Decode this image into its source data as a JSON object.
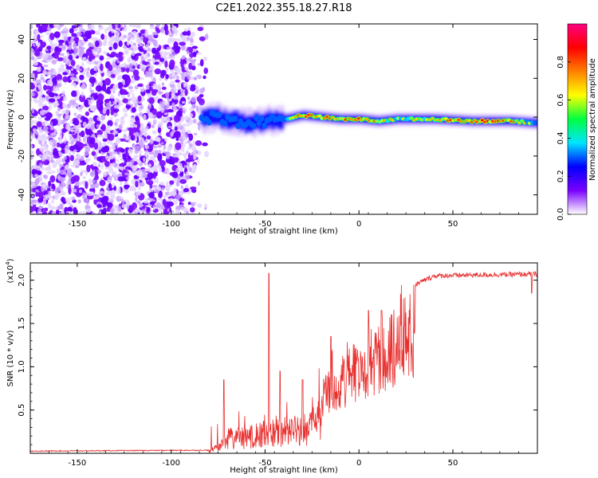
{
  "title": "C2E1.2022.355.18.27.R18",
  "chart_data": [
    {
      "type": "heatmap",
      "xlabel": "Height of straight line (km)",
      "ylabel": "Frequency (Hz)",
      "xlim": [
        -175,
        95
      ],
      "ylim": [
        -50,
        48
      ],
      "xticks": [
        "-150",
        "-100",
        "-50",
        "0",
        "50"
      ],
      "xtick_values": [
        -150,
        -100,
        -50,
        0,
        50
      ],
      "yticks": [
        "40",
        "20",
        "0",
        "-20",
        "-40"
      ],
      "ytick_values": [
        40,
        20,
        0,
        -20,
        -40
      ],
      "colorbar": {
        "label": "Normalized spectral amplitude",
        "range": [
          0,
          1
        ],
        "ticks": [
          "0.0",
          "0.2",
          "0.4",
          "0.6",
          "0.8"
        ],
        "tick_values": [
          0.0,
          0.2,
          0.4,
          0.6,
          0.8
        ],
        "colors": [
          "#ffffff",
          "#7a00ff",
          "#0000ff",
          "#00e5ff",
          "#00ff40",
          "#ffff00",
          "#ff8000",
          "#ff0000",
          "#ff0080"
        ]
      },
      "noise_region_end_km": -87,
      "signal_track": [
        {
          "x": -84,
          "y": -1,
          "amp": 0.35
        },
        {
          "x": -78,
          "y": 0,
          "amp": 0.3
        },
        {
          "x": -70,
          "y": -1,
          "amp": 0.35
        },
        {
          "x": -60,
          "y": -3,
          "amp": 0.3
        },
        {
          "x": -50,
          "y": -2,
          "amp": 0.35
        },
        {
          "x": -40,
          "y": -1,
          "amp": 0.4
        },
        {
          "x": -30,
          "y": 1,
          "amp": 0.8
        },
        {
          "x": -20,
          "y": 0,
          "amp": 0.8
        },
        {
          "x": -10,
          "y": -1,
          "amp": 0.75
        },
        {
          "x": 0,
          "y": -1,
          "amp": 0.8
        },
        {
          "x": 10,
          "y": -2,
          "amp": 0.75
        },
        {
          "x": 20,
          "y": -1,
          "amp": 0.6
        },
        {
          "x": 40,
          "y": -1,
          "amp": 0.7
        },
        {
          "x": 60,
          "y": -2,
          "amp": 0.85
        },
        {
          "x": 80,
          "y": -2,
          "amp": 0.8
        },
        {
          "x": 95,
          "y": -3,
          "amp": 0.5
        }
      ]
    },
    {
      "type": "line",
      "xlabel": "Height of straight line (km)",
      "ylabel": "SNR (10 * v/v)",
      "scale_label": "(x10",
      "scale_exponent": "4",
      "scale_suffix": ")",
      "xlim": [
        -175,
        95
      ],
      "ylim": [
        0,
        2.2
      ],
      "xticks": [
        "-150",
        "-100",
        "-50",
        "0",
        "50"
      ],
      "xtick_values": [
        -150,
        -100,
        -50,
        0,
        50
      ],
      "yticks": [
        "2.0",
        "1.5",
        "1.0",
        "0.5"
      ],
      "ytick_values": [
        2.0,
        1.5,
        1.0,
        0.5
      ],
      "color": "#e8302f",
      "envelope": [
        {
          "x": -175,
          "y": 0.02
        },
        {
          "x": -80,
          "y": 0.03
        },
        {
          "x": -74,
          "y": 0.15
        },
        {
          "x": -70,
          "y": 0.3
        },
        {
          "x": -60,
          "y": 0.3
        },
        {
          "x": -50,
          "y": 0.4
        },
        {
          "x": -40,
          "y": 0.45
        },
        {
          "x": -30,
          "y": 0.45
        },
        {
          "x": -25,
          "y": 0.5
        },
        {
          "x": -20,
          "y": 0.85
        },
        {
          "x": -15,
          "y": 1.0
        },
        {
          "x": -10,
          "y": 1.1
        },
        {
          "x": 0,
          "y": 1.35
        },
        {
          "x": 10,
          "y": 1.5
        },
        {
          "x": 20,
          "y": 1.7
        },
        {
          "x": 30,
          "y": 1.95
        },
        {
          "x": 40,
          "y": 2.05
        },
        {
          "x": 60,
          "y": 2.06
        },
        {
          "x": 95,
          "y": 2.07
        }
      ],
      "spikes": [
        {
          "x": -72,
          "y": 0.85
        },
        {
          "x": -48,
          "y": 2.08
        },
        {
          "x": -42,
          "y": 0.95
        },
        {
          "x": -30,
          "y": 0.85
        },
        {
          "x": -15,
          "y": 1.35
        },
        {
          "x": 5,
          "y": 1.65
        },
        {
          "x": 12,
          "y": 1.65
        },
        {
          "x": 92,
          "y": 1.85
        }
      ]
    }
  ]
}
